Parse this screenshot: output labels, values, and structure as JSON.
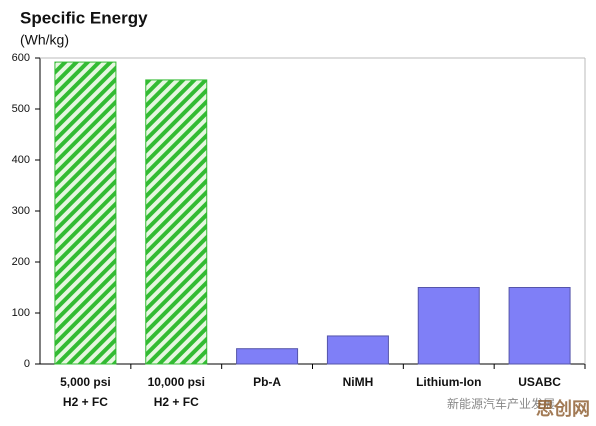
{
  "chart_data": {
    "type": "bar",
    "title": "Specific Energy",
    "subtitle": "(Wh/kg)",
    "categories": [
      "5,000 psi\nH2 + FC",
      "10,000 psi\nH2 + FC",
      "Pb-A",
      "NiMH",
      "Lithium-Ion",
      "USABC"
    ],
    "values": [
      592,
      557,
      30,
      55,
      150,
      150
    ],
    "colors": [
      "#33bb33",
      "#33bb33",
      "#7f7ff7",
      "#7f7ff7",
      "#7f7ff7",
      "#7f7ff7"
    ],
    "hatched": [
      true,
      true,
      false,
      false,
      false,
      false
    ],
    "ylim": [
      0,
      600
    ],
    "yticks": [
      0,
      100,
      200,
      300,
      400,
      500,
      600
    ],
    "watermark": [
      "新能源汽车产业发展",
      "思创网"
    ]
  }
}
